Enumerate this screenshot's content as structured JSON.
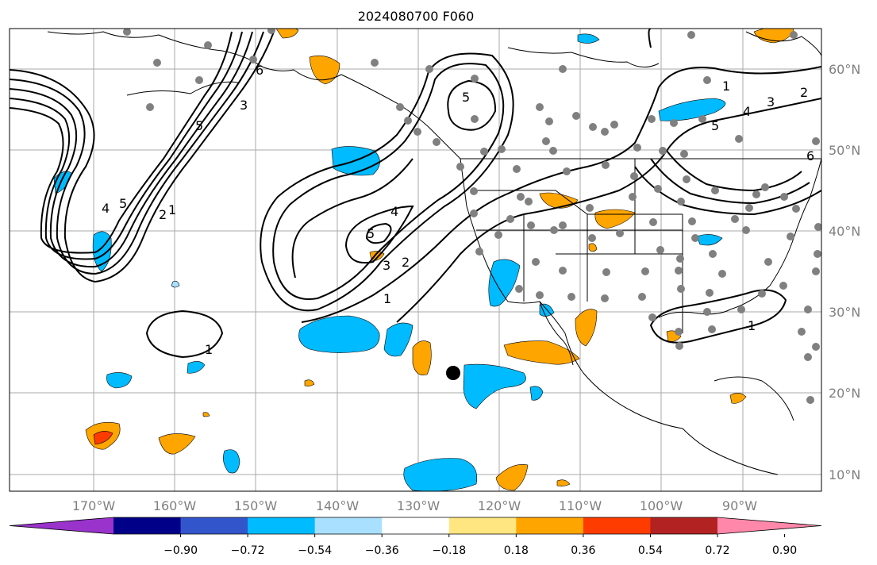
{
  "title": "2024080700 F060",
  "lon_labels": [
    "170°W",
    "160°W",
    "150°W",
    "140°W",
    "130°W",
    "120°W",
    "110°W",
    "100°W",
    "90°W"
  ],
  "lat_labels": [
    "60°N",
    "50°N",
    "40°N",
    "30°N",
    "20°N",
    "10°N"
  ],
  "contour_labels": [
    "1",
    "2",
    "3",
    "4",
    "5",
    "6"
  ],
  "colorbar": {
    "ticks": [
      "−0.90",
      "−0.72",
      "−0.54",
      "−0.36",
      "−0.18",
      "0.18",
      "0.36",
      "0.54",
      "0.72",
      "0.90"
    ],
    "colors": [
      "#9933cc",
      "#000088",
      "#3355cc",
      "#00bbff",
      "#aae0ff",
      "#ffffff",
      "#ffe680",
      "#ffa500",
      "#ff3c00",
      "#b22222",
      "#ff88aa"
    ]
  },
  "colors": {
    "ocean": "#ffffff",
    "grid": "#aaaaaa",
    "station": "#808080",
    "marker": "#000000"
  }
}
